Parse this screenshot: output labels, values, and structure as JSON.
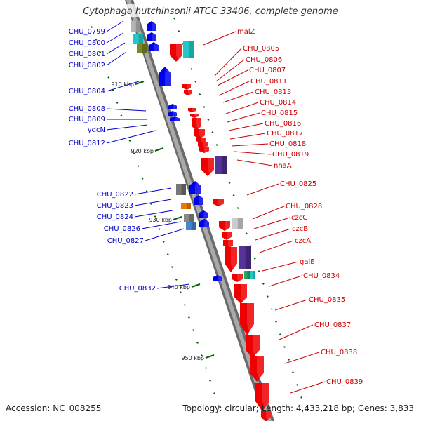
{
  "title": "Cytophaga hutchinsonii ATCC 33406, complete genome",
  "footer": {
    "accession": "Accession: NC_008255",
    "topology": "Topology: circular; Length: 4,433,218 bp; Genes: 3,833"
  },
  "colors": {
    "left_labels": "#0000cc",
    "right_labels": "#cc0000",
    "backbone": "#888888",
    "tick": "#006600"
  },
  "kbp_marks": [
    "910 kbp",
    "920 kbp",
    "930 kbp",
    "940 kbp",
    "950 kbp"
  ],
  "left_labels": [
    "CHU_0799",
    "CHU_0800",
    "CHU_0801",
    "CHU_0802",
    "CHU_0804",
    "CHU_0808",
    "CHU_0809",
    "ydcN",
    "CHU_0812",
    "CHU_0822",
    "CHU_0823",
    "CHU_0824",
    "CHU_0826",
    "CHU_0827",
    "CHU_0832"
  ],
  "right_labels": [
    "malZ",
    "CHU_0805",
    "CHU_0806",
    "CHU_0807",
    "CHU_0811",
    "CHU_0813",
    "CHU_0814",
    "CHU_0815",
    "CHU_0816",
    "CHU_0817",
    "CHU_0818",
    "CHU_0819",
    "nhaA",
    "CHU_0825",
    "CHU_0828",
    "czcC",
    "czcB",
    "czcA",
    "galE",
    "CHU_0834",
    "CHU_0835",
    "CHU_0837",
    "CHU_0838",
    "CHU_0839"
  ]
}
